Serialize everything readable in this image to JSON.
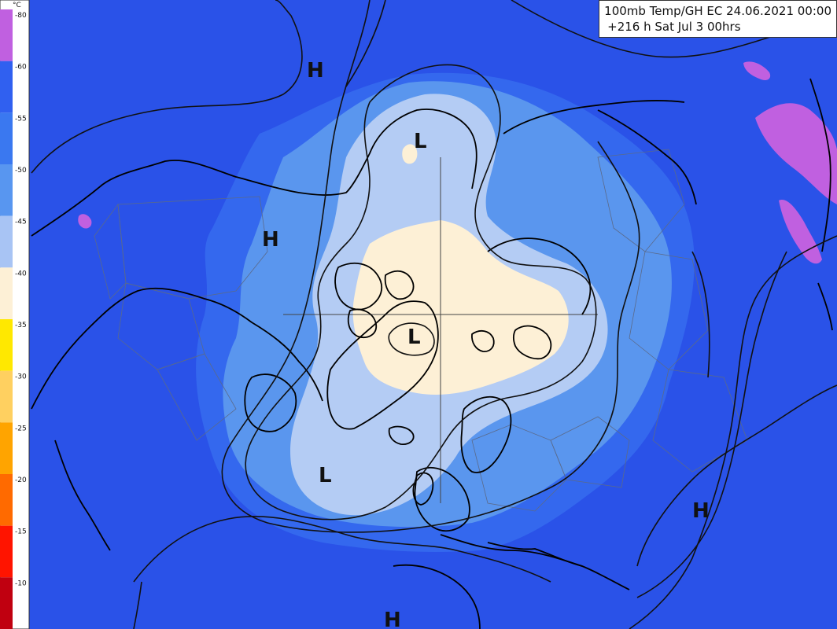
{
  "header": {
    "title": "100mb Temp/GH EC 24.06.2021 00:00",
    "subtitle": "+216 h Sat Jul 3 00hrs"
  },
  "legend": {
    "unit": "°C",
    "ticks": [
      "-80",
      "-60",
      "-55",
      "-50",
      "-45",
      "-40",
      "-35",
      "-30",
      "-25",
      "-20",
      "-15",
      "-10"
    ],
    "colors": [
      "#c060e0",
      "#3060f0",
      "#3a78f0",
      "#5896f0",
      "#a8c4f4",
      "#fdf0d6",
      "#ffe800",
      "#ffd060",
      "#ffa400",
      "#ff6a00",
      "#ff1400",
      "#c00010"
    ]
  },
  "pressure_labels": [
    {
      "name": "high-label-north-pacific",
      "text": "H"
    },
    {
      "name": "high-label-northwest-canada",
      "text": "H"
    },
    {
      "name": "low-label-alaska",
      "text": "L"
    },
    {
      "name": "low-label-greenland",
      "text": "L"
    },
    {
      "name": "low-label-north-atlantic",
      "text": "L"
    },
    {
      "name": "high-label-central-asia",
      "text": "H"
    },
    {
      "name": "high-label-mediterranean",
      "text": "H"
    }
  ],
  "colors": {
    "background": "#2a52e8",
    "band_55": "#3468ee",
    "band_50": "#5a96ee",
    "band_45": "#b4ccf4",
    "band_40": "#fdf0d6",
    "band_60_purple": "#c060e0",
    "contour": "#111111",
    "coast": "#000000",
    "border": "#5a6a8a"
  }
}
